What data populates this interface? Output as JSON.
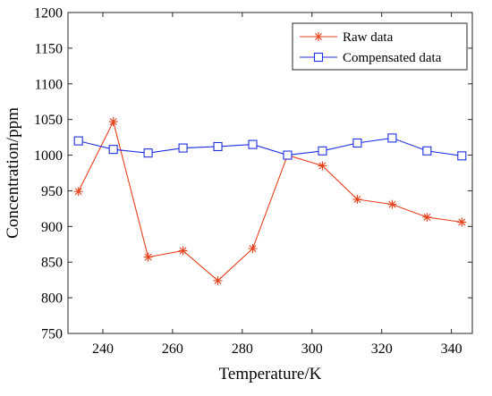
{
  "chart_data": {
    "type": "line",
    "title": "",
    "xlabel": "Temperature/K",
    "ylabel": "Concentration/ppm",
    "xlim": [
      230,
      346
    ],
    "ylim": [
      750,
      1200
    ],
    "xticks": [
      240,
      260,
      280,
      300,
      320,
      340
    ],
    "yticks": [
      750,
      800,
      850,
      900,
      950,
      1000,
      1050,
      1100,
      1150,
      1200
    ],
    "x": [
      233,
      243,
      253,
      263,
      273,
      283,
      293,
      303,
      313,
      323,
      333,
      343
    ],
    "grid": false,
    "legend_position": "top-right",
    "series": [
      {
        "name": "Raw data",
        "color": "#e8401c",
        "marker": "asterisk",
        "values": [
          949,
          1047,
          857,
          866,
          824,
          869,
          1000,
          985,
          938,
          931,
          913,
          906
        ]
      },
      {
        "name": "Compensated data",
        "color": "#1f2fe0",
        "marker": "square",
        "values": [
          1020,
          1008,
          1003,
          1010,
          1012,
          1015,
          1000,
          1006,
          1017,
          1024,
          1006,
          999
        ]
      }
    ]
  }
}
